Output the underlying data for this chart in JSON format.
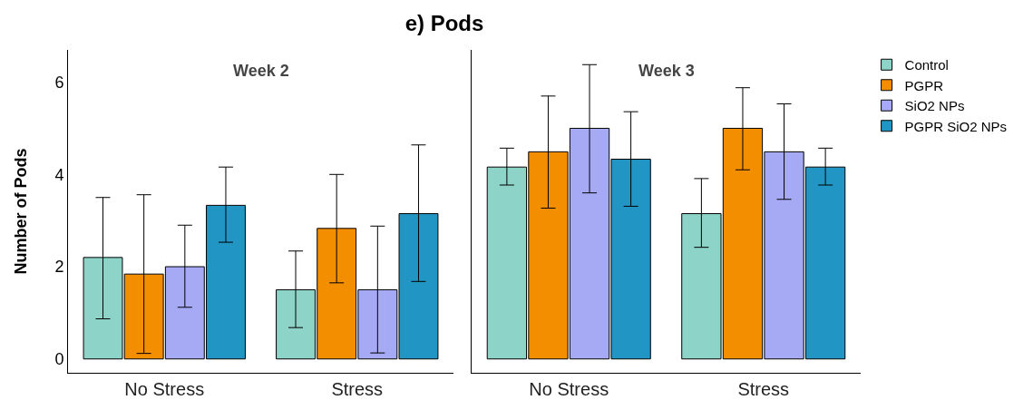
{
  "chart_data": [
    {
      "type": "bar",
      "title": "e) Pods",
      "subtitle": "Week 2",
      "ylabel": "Number of Pods",
      "categories": [
        "No Stress",
        "Stress"
      ],
      "series": [
        {
          "color": "#8dd3c7",
          "values": [
            2.2,
            1.5
          ],
          "errors": [
            [
              0.87,
              3.5
            ],
            [
              0.68,
              2.34
            ]
          ]
        },
        {
          "color": "#f28e00",
          "values": [
            1.84,
            2.83
          ],
          "errors": [
            [
              0.12,
              3.56
            ],
            [
              1.65,
              4.0
            ]
          ]
        },
        {
          "color": "#a6a9f4",
          "values": [
            2.0,
            1.5
          ],
          "errors": [
            [
              1.12,
              2.9
            ],
            [
              0.13,
              2.88
            ]
          ]
        },
        {
          "color": "#2196c4",
          "values": [
            3.33,
            3.15
          ],
          "errors": [
            [
              2.53,
              4.16
            ],
            [
              1.68,
              4.64
            ]
          ]
        }
      ],
      "ylim": [
        -0.3,
        6.7
      ],
      "yticks": [
        0,
        2,
        4,
        6
      ],
      "grid": false,
      "legend": false
    },
    {
      "type": "bar",
      "subtitle": "Week 3",
      "categories": [
        "No Stress",
        "Stress"
      ],
      "series": [
        {
          "name": "Control",
          "color": "#8dd3c7",
          "values": [
            4.16,
            3.15
          ],
          "errors": [
            [
              3.77,
              4.57
            ],
            [
              2.42,
              3.91
            ]
          ]
        },
        {
          "name": "PGPR",
          "color": "#f28e00",
          "values": [
            4.49,
            5.0
          ],
          "errors": [
            [
              3.27,
              5.7
            ],
            [
              4.1,
              5.88
            ]
          ]
        },
        {
          "name": "SiO2 NPs",
          "color": "#a6a9f4",
          "values": [
            5.0,
            4.49
          ],
          "errors": [
            [
              3.6,
              6.38
            ],
            [
              3.46,
              5.53
            ]
          ]
        },
        {
          "name": "PGPR SiO2 NPs",
          "color": "#2196c4",
          "values": [
            4.33,
            4.16
          ],
          "errors": [
            [
              3.31,
              5.36
            ],
            [
              3.77,
              4.57
            ]
          ]
        }
      ],
      "ylim": [
        -0.3,
        6.7
      ],
      "yticks": [
        0,
        2,
        4,
        6
      ],
      "grid": false,
      "legend": "top right",
      "tick_labels": "x"
    }
  ]
}
